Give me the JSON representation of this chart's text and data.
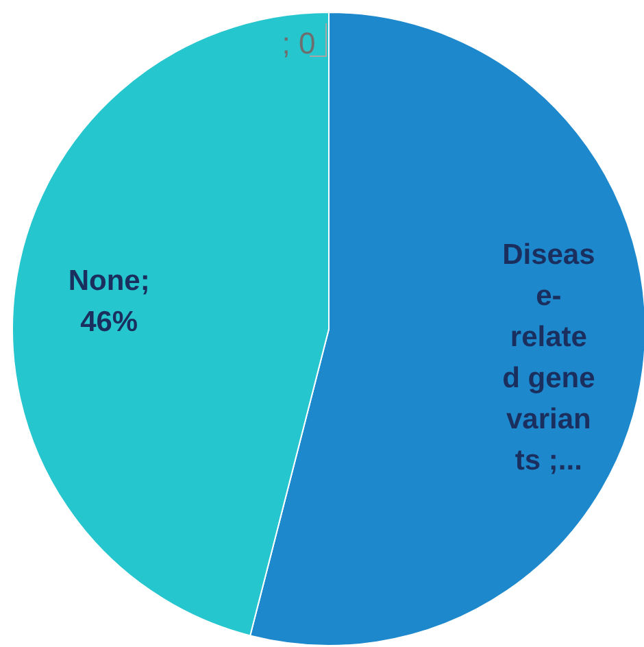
{
  "chart_data": {
    "type": "pie",
    "categories": [
      "Disease-related gene variants",
      "None",
      null
    ],
    "values": [
      54,
      46,
      0
    ],
    "colors": [
      "#1e88cc",
      "#26c6cf",
      "#a6a6a6"
    ],
    "value_labels": [
      " ;...",
      "; 46%",
      "; 0"
    ]
  }
}
